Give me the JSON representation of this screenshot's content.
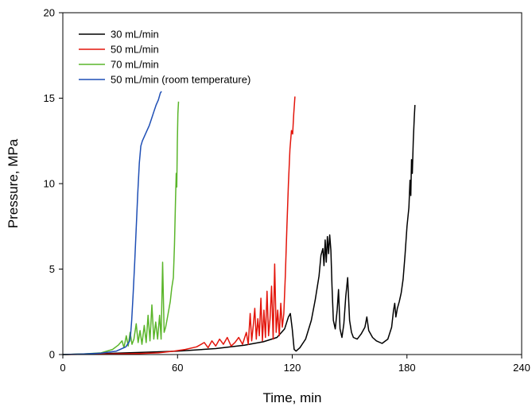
{
  "chart_data": {
    "type": "line",
    "title": "",
    "xlabel": "Time, min",
    "ylabel": "Pressure, MPa",
    "xlim": [
      0,
      240
    ],
    "ylim": [
      0,
      20
    ],
    "xticks": [
      0,
      60,
      120,
      180,
      240
    ],
    "yticks": [
      0,
      5,
      10,
      15,
      20
    ],
    "grid": false,
    "legend_position": "top-left",
    "series": [
      {
        "name": "30 mL/min",
        "color": "#000000",
        "points": [
          [
            0,
            0
          ],
          [
            20,
            0.05
          ],
          [
            40,
            0.12
          ],
          [
            60,
            0.2
          ],
          [
            80,
            0.35
          ],
          [
            95,
            0.55
          ],
          [
            105,
            0.75
          ],
          [
            112,
            1.0
          ],
          [
            116,
            1.5
          ],
          [
            118,
            2.2
          ],
          [
            119,
            2.4
          ],
          [
            120,
            1.5
          ],
          [
            121,
            0.3
          ],
          [
            122,
            0.2
          ],
          [
            124,
            0.4
          ],
          [
            127,
            0.9
          ],
          [
            130,
            2.0
          ],
          [
            132,
            3.2
          ],
          [
            134,
            4.6
          ],
          [
            135,
            5.8
          ],
          [
            136,
            6.2
          ],
          [
            136.6,
            5.2
          ],
          [
            137.2,
            6.7
          ],
          [
            137.8,
            5.4
          ],
          [
            138.4,
            6.9
          ],
          [
            139,
            5.9
          ],
          [
            139.6,
            7.0
          ],
          [
            140.2,
            6.1
          ],
          [
            140.8,
            4.0
          ],
          [
            141.5,
            2.0
          ],
          [
            142.5,
            1.5
          ],
          [
            143.5,
            2.6
          ],
          [
            144.2,
            3.8
          ],
          [
            145,
            1.5
          ],
          [
            146,
            1.0
          ],
          [
            147,
            1.8
          ],
          [
            148,
            3.4
          ],
          [
            149,
            4.5
          ],
          [
            150,
            2.0
          ],
          [
            151,
            1.3
          ],
          [
            152,
            1.0
          ],
          [
            154,
            0.9
          ],
          [
            156,
            1.2
          ],
          [
            158,
            1.6
          ],
          [
            159,
            2.2
          ],
          [
            160,
            1.4
          ],
          [
            162,
            1.0
          ],
          [
            164,
            0.8
          ],
          [
            167,
            0.65
          ],
          [
            170,
            0.9
          ],
          [
            172,
            1.6
          ],
          [
            173,
            2.6
          ],
          [
            173.6,
            3.0
          ],
          [
            174.2,
            2.2
          ],
          [
            175,
            2.7
          ],
          [
            176,
            3.1
          ],
          [
            177,
            3.6
          ],
          [
            178,
            4.4
          ],
          [
            179,
            5.8
          ],
          [
            180,
            7.5
          ],
          [
            181,
            8.6
          ],
          [
            181.6,
            10.2
          ],
          [
            182,
            9.3
          ],
          [
            182.4,
            11.4
          ],
          [
            182.8,
            10.6
          ],
          [
            183.3,
            12.5
          ],
          [
            183.8,
            13.8
          ],
          [
            184.2,
            14.6
          ]
        ]
      },
      {
        "name": "50 mL/min",
        "color": "#e3150b",
        "points": [
          [
            0,
            0
          ],
          [
            20,
            0.03
          ],
          [
            40,
            0.06
          ],
          [
            50,
            0.1
          ],
          [
            58,
            0.2
          ],
          [
            64,
            0.3
          ],
          [
            70,
            0.45
          ],
          [
            74,
            0.7
          ],
          [
            76,
            0.4
          ],
          [
            78,
            0.8
          ],
          [
            80,
            0.5
          ],
          [
            82,
            0.9
          ],
          [
            84,
            0.6
          ],
          [
            86,
            1.0
          ],
          [
            88,
            0.5
          ],
          [
            90,
            0.7
          ],
          [
            92,
            1.0
          ],
          [
            94,
            0.6
          ],
          [
            96,
            1.3
          ],
          [
            97,
            0.6
          ],
          [
            98,
            2.4
          ],
          [
            98.8,
            0.8
          ],
          [
            99.6,
            1.7
          ],
          [
            100.4,
            2.7
          ],
          [
            101.2,
            0.9
          ],
          [
            102,
            2.1
          ],
          [
            102.8,
            1.1
          ],
          [
            103.6,
            3.3
          ],
          [
            104.4,
            0.8
          ],
          [
            105.2,
            2.6
          ],
          [
            106,
            1.0
          ],
          [
            106.8,
            3.7
          ],
          [
            107.6,
            1.1
          ],
          [
            108.4,
            2.1
          ],
          [
            109.2,
            4.0
          ],
          [
            110,
            0.9
          ],
          [
            110.8,
            5.3
          ],
          [
            111.6,
            1.3
          ],
          [
            112.4,
            2.6
          ],
          [
            113.2,
            1.1
          ],
          [
            114,
            3.0
          ],
          [
            114.8,
            1.6
          ],
          [
            115.6,
            2.4
          ],
          [
            116.4,
            4.6
          ],
          [
            117.2,
            7.5
          ],
          [
            118,
            10.0
          ],
          [
            118.8,
            12.0
          ],
          [
            119.6,
            13.1
          ],
          [
            120.2,
            12.9
          ],
          [
            120.8,
            14.1
          ],
          [
            121.4,
            15.1
          ]
        ]
      },
      {
        "name": "70 mL/min",
        "color": "#5ab52a",
        "points": [
          [
            0,
            0
          ],
          [
            10,
            0.03
          ],
          [
            20,
            0.1
          ],
          [
            26,
            0.3
          ],
          [
            29,
            0.55
          ],
          [
            31,
            0.8
          ],
          [
            32,
            0.4
          ],
          [
            33.2,
            1.1
          ],
          [
            34.2,
            0.5
          ],
          [
            35.2,
            1.3
          ],
          [
            36.2,
            0.6
          ],
          [
            37.2,
            0.9
          ],
          [
            38.4,
            1.8
          ],
          [
            39.4,
            0.7
          ],
          [
            40.4,
            1.4
          ],
          [
            41.4,
            0.6
          ],
          [
            42.6,
            1.7
          ],
          [
            43.6,
            0.7
          ],
          [
            44.6,
            2.3
          ],
          [
            45.6,
            0.8
          ],
          [
            46.6,
            2.9
          ],
          [
            47.6,
            0.9
          ],
          [
            48.6,
            1.9
          ],
          [
            49.6,
            0.9
          ],
          [
            50.6,
            2.3
          ],
          [
            51.4,
            0.9
          ],
          [
            52.2,
            5.4
          ],
          [
            53,
            1.3
          ],
          [
            53.8,
            1.6
          ],
          [
            54.6,
            2.1
          ],
          [
            55.4,
            2.6
          ],
          [
            56.2,
            3.1
          ],
          [
            57,
            3.9
          ],
          [
            57.8,
            4.5
          ],
          [
            58.4,
            6.4
          ],
          [
            59,
            9.2
          ],
          [
            59.3,
            10.6
          ],
          [
            59.6,
            9.8
          ],
          [
            59.9,
            12.4
          ],
          [
            60.2,
            14.1
          ],
          [
            60.5,
            14.8
          ]
        ]
      },
      {
        "name": "50 mL/min (room temperature)",
        "color": "#1f4fb5",
        "points": [
          [
            0,
            0
          ],
          [
            10,
            0.03
          ],
          [
            20,
            0.08
          ],
          [
            28,
            0.2
          ],
          [
            33,
            0.45
          ],
          [
            35,
            0.8
          ],
          [
            35.5,
            1.2
          ],
          [
            36,
            2.0
          ],
          [
            36.8,
            3.6
          ],
          [
            37.6,
            5.4
          ],
          [
            38.4,
            7.4
          ],
          [
            39.2,
            9.4
          ],
          [
            40,
            11.2
          ],
          [
            40.8,
            12.2
          ],
          [
            41.6,
            12.5
          ],
          [
            42.8,
            12.8
          ],
          [
            44,
            13.1
          ],
          [
            45.2,
            13.4
          ],
          [
            46.4,
            13.8
          ],
          [
            47.6,
            14.2
          ],
          [
            48.8,
            14.6
          ],
          [
            50,
            14.9
          ],
          [
            51,
            15.3
          ],
          [
            51.6,
            15.4
          ]
        ]
      }
    ]
  }
}
